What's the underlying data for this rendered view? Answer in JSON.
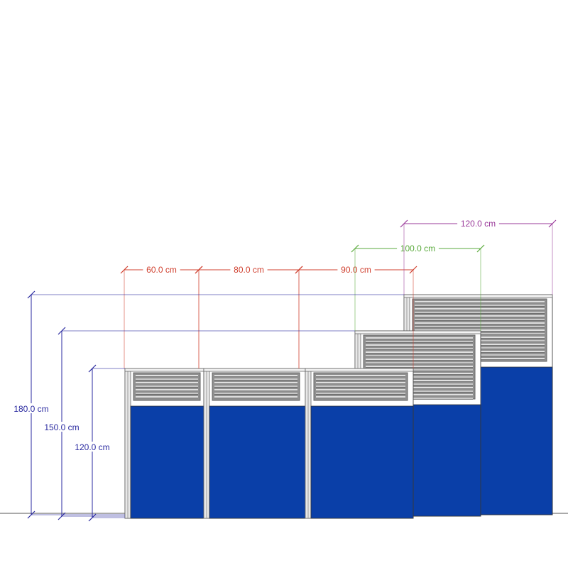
{
  "dimensions": {
    "widths": [
      {
        "label": "60.0 cm",
        "color": "#d0402f"
      },
      {
        "label": "80.0 cm",
        "color": "#d0402f"
      },
      {
        "label": "90.0 cm",
        "color": "#d0402f"
      },
      {
        "label": "100.0 cm",
        "color": "#5aaa3c"
      },
      {
        "label": "120.0 cm",
        "color": "#9a3a9a"
      }
    ],
    "heights": [
      {
        "label": "180.0 cm",
        "color": "#2a2aa0"
      },
      {
        "label": "150.0 cm",
        "color": "#2a2aa0"
      },
      {
        "label": "120.0 cm",
        "color": "#2a2aa0"
      }
    ]
  },
  "colors": {
    "panel_fabric": "#0a3fa8",
    "frame": "#808080",
    "slat": "#a0a0a0"
  }
}
